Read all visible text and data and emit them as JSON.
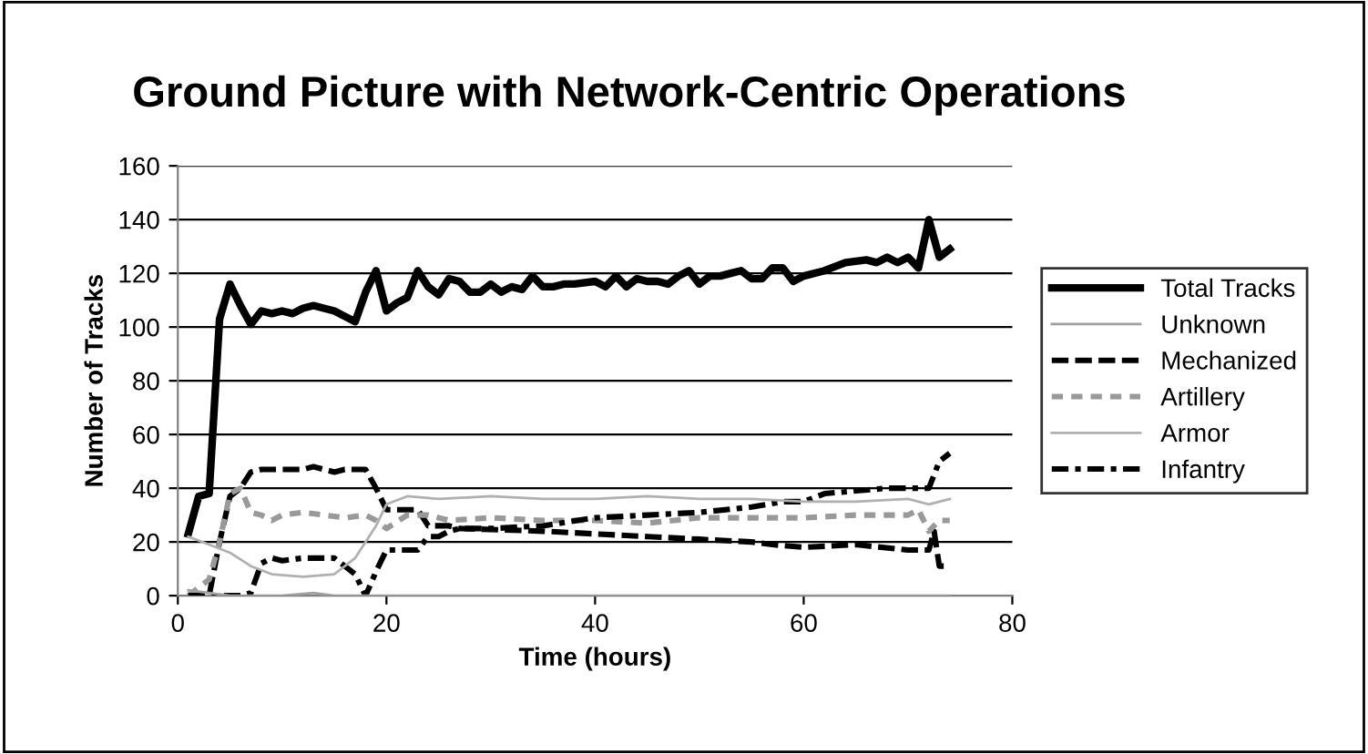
{
  "chart_data": {
    "type": "line",
    "title": "Ground Picture with Network-Centric Operations",
    "xlabel": "Time (hours)",
    "ylabel": "Number of Tracks",
    "xlim": [
      0,
      80
    ],
    "xticks": [
      0,
      20,
      40,
      60,
      80
    ],
    "ylim": [
      0,
      160
    ],
    "yticks": [
      0,
      20,
      40,
      60,
      80,
      100,
      120,
      140,
      160
    ],
    "grid": "y",
    "legend": "right",
    "marker": "none",
    "series": [
      {
        "name": "Total Tracks",
        "color": "#000000",
        "line_style": "solid",
        "x": [
          1,
          2,
          3,
          4,
          5,
          6,
          7,
          8,
          9,
          10,
          11,
          12,
          13,
          14,
          15,
          16,
          17,
          18,
          19,
          20,
          21,
          22,
          23,
          24,
          25,
          26,
          27,
          28,
          29,
          30,
          31,
          32,
          33,
          34,
          35,
          36,
          37,
          38,
          40,
          41,
          42,
          43,
          44,
          45,
          46,
          47,
          48,
          49,
          50,
          51,
          52,
          53,
          54,
          55,
          56,
          57,
          58,
          59,
          60,
          62,
          64,
          66,
          67,
          68,
          69,
          70,
          71,
          72,
          73,
          74
        ],
        "values": [
          23,
          37,
          38,
          103,
          116,
          108,
          101,
          106,
          105,
          106,
          105,
          107,
          108,
          107,
          106,
          104,
          102,
          113,
          121,
          106,
          109,
          111,
          121,
          115,
          112,
          118,
          117,
          113,
          113,
          116,
          113,
          115,
          114,
          119,
          115,
          115,
          116,
          116,
          117,
          115,
          119,
          115,
          118,
          117,
          117,
          116,
          119,
          121,
          116,
          119,
          119,
          120,
          121,
          118,
          118,
          122,
          122,
          117,
          119,
          121,
          124,
          125,
          124,
          126,
          124,
          126,
          122,
          140,
          126,
          129
        ]
      },
      {
        "name": "Unknown",
        "color": "#a0a0a0",
        "line_style": "solid",
        "x": [
          1,
          3,
          5,
          10,
          13,
          15,
          20,
          40,
          60,
          74
        ],
        "values": [
          2,
          1,
          0,
          0,
          1,
          0,
          0,
          0,
          0,
          0
        ]
      },
      {
        "name": "Mechanized",
        "color": "#000000",
        "line_style": "dashed",
        "x": [
          1,
          3,
          4,
          5,
          6,
          7,
          8,
          12,
          13,
          14,
          15,
          16,
          17,
          18,
          19,
          20,
          23,
          24,
          26,
          27,
          35,
          40,
          45,
          50,
          55,
          57,
          60,
          65,
          70,
          72,
          72.5,
          73,
          74
        ],
        "values": [
          0,
          0,
          20,
          37,
          40,
          46,
          47,
          47,
          48,
          47,
          46,
          47,
          47,
          47,
          40,
          32,
          32,
          26,
          26,
          25,
          24,
          23,
          22,
          21,
          20,
          19,
          18,
          19,
          17,
          17,
          24,
          11,
          11
        ]
      },
      {
        "name": "Artillery",
        "color": "#999999",
        "line_style": "dotted",
        "x": [
          1,
          2,
          3,
          4,
          5,
          6,
          7,
          8,
          9,
          10,
          12,
          14,
          16,
          18,
          19,
          20,
          22,
          24,
          26,
          30,
          35,
          40,
          45,
          50,
          55,
          60,
          65,
          70,
          71,
          72,
          73,
          74
        ],
        "values": [
          0,
          3,
          6,
          20,
          38,
          40,
          31,
          30,
          28,
          30,
          31,
          30,
          29,
          30,
          28,
          25,
          30,
          30,
          28,
          29,
          28,
          28,
          27,
          29,
          29,
          29,
          30,
          30,
          32,
          24,
          28,
          28
        ]
      },
      {
        "name": "Armor",
        "color": "#b0b0b0",
        "line_style": "solid",
        "x": [
          1,
          3,
          5,
          7,
          9,
          12,
          15,
          17,
          19,
          20,
          22,
          25,
          30,
          35,
          40,
          45,
          50,
          55,
          60,
          65,
          70,
          72,
          74
        ],
        "values": [
          22,
          19,
          16,
          11,
          8,
          7,
          8,
          14,
          26,
          34,
          37,
          36,
          37,
          36,
          36,
          37,
          36,
          36,
          35,
          35,
          36,
          34,
          36
        ]
      },
      {
        "name": "Infantry",
        "color": "#000000",
        "line_style": "dashdot",
        "x": [
          1,
          6,
          7,
          8,
          9,
          10,
          12,
          14,
          15,
          16,
          17,
          18,
          19,
          20,
          23,
          24,
          25,
          26,
          27,
          30,
          35,
          40,
          45,
          50,
          55,
          58,
          60,
          62,
          65,
          68,
          72,
          73,
          74
        ],
        "values": [
          0,
          0,
          1,
          12,
          14,
          13,
          14,
          14,
          14,
          11,
          8,
          0,
          9,
          17,
          17,
          22,
          22,
          24,
          25,
          25,
          26,
          29,
          30,
          31,
          33,
          35,
          35,
          38,
          39,
          40,
          40,
          50,
          53
        ]
      }
    ]
  }
}
